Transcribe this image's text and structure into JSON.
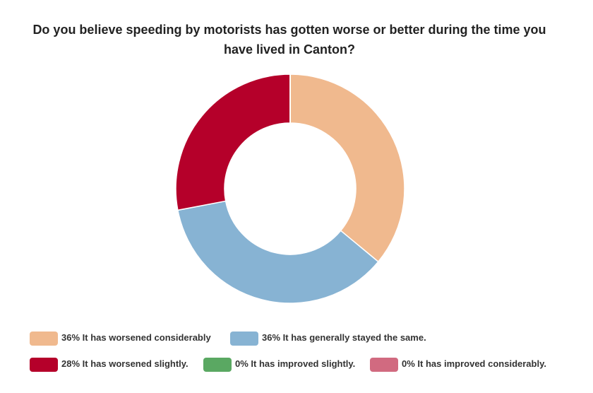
{
  "chart_data": {
    "type": "donut",
    "title": "Do you believe speeding by motorists has gotten worse or better during the time you have lived in Canton?",
    "categories": [
      "It has worsened considerably",
      "It has generally stayed the same.",
      "It has worsened slightly.",
      "It has improved slightly.",
      "It has improved considerably."
    ],
    "values": [
      36,
      36,
      28,
      0,
      0
    ],
    "value_labels": [
      "36%",
      "36%",
      "28%",
      "0%",
      "0%"
    ],
    "colors": [
      "#f0b98e",
      "#87b3d3",
      "#b5002a",
      "#5aa862",
      "#d16a80"
    ]
  }
}
